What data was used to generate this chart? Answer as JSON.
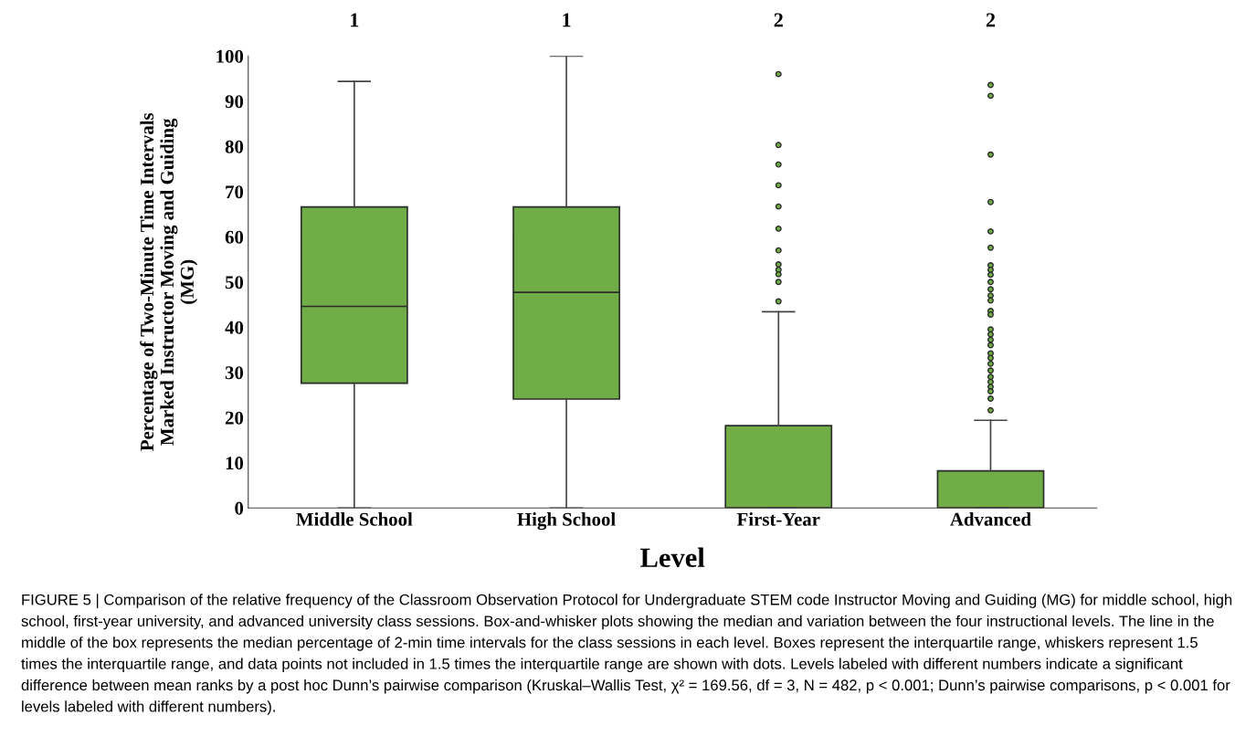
{
  "chart_data": {
    "type": "box",
    "categories": [
      "Middle School",
      "High School",
      "First-Year",
      "Advanced"
    ],
    "xlabel": "Level",
    "ylabel": "Percentage of Two-Minute Time Intervals\nMarked Instructor Moving and Guiding\n(MG)",
    "ylim": [
      0,
      100
    ],
    "yticks": [
      0,
      10,
      20,
      30,
      40,
      50,
      60,
      70,
      80,
      90,
      100
    ],
    "grid": false,
    "series": [
      {
        "color": "#70ad47",
        "boxes": [
          {
            "low": 0,
            "q1": 27.6,
            "median": 44.6,
            "q3": 66.6,
            "high": 94.4
          },
          {
            "low": 0,
            "q1": 24.1,
            "median": 47.7,
            "q3": 66.6,
            "high": 100
          },
          {
            "low": 0,
            "q1": 0,
            "median": 0,
            "q3": 18.2,
            "high": 43.4,
            "outliers": [
              96.0,
              80.3,
              76.0,
              71.4,
              66.7,
              61.8,
              57.0,
              53.9,
              52.7,
              51.7,
              50.0,
              45.7
            ]
          },
          {
            "low": 0,
            "q1": 0,
            "median": 0,
            "q3": 8.2,
            "high": 19.4,
            "outliers": [
              93.6,
              91.2,
              78.2,
              67.7,
              61.2,
              57.6,
              53.7,
              52.7,
              51.6,
              50.0,
              48.4,
              47.0,
              45.9,
              43.6,
              42.8,
              39.5,
              38.4,
              37.2,
              36.0,
              34.2,
              33.2,
              31.9,
              30.4,
              29.0,
              27.9,
              26.8,
              25.8,
              24.2,
              21.6
            ]
          }
        ]
      }
    ],
    "annotations": [
      "1",
      "1",
      "2",
      "2",
      "FIGURE 5 | Comparison of the relative frequency of the Classroom Observation Protocol for Undergraduate STEM code Instructor Moving and Guiding (MG) for middle school, high school, first-year university, and advanced university class sessions. Box-and-whisker plots showing the median and variation between the four instructional levels. The line in the middle of the box represents the median percentage of 2-min time intervals for the class sessions in each level. Boxes represent the interquartile range, whiskers represent 1.5 times the interquartile range, and data points not included in 1.5 times the interquartile range are shown with dots. Levels labeled with different numbers indicate a significant difference between mean ranks by a post hoc Dunn’s pairwise comparison (Kruskal–Wallis Test, χ² = 169.56, df = 3, N = 482, p < 0.001; Dunn’s pairwise comparisons, p < 0.001 for levels labeled with different numbers)."
    ]
  }
}
